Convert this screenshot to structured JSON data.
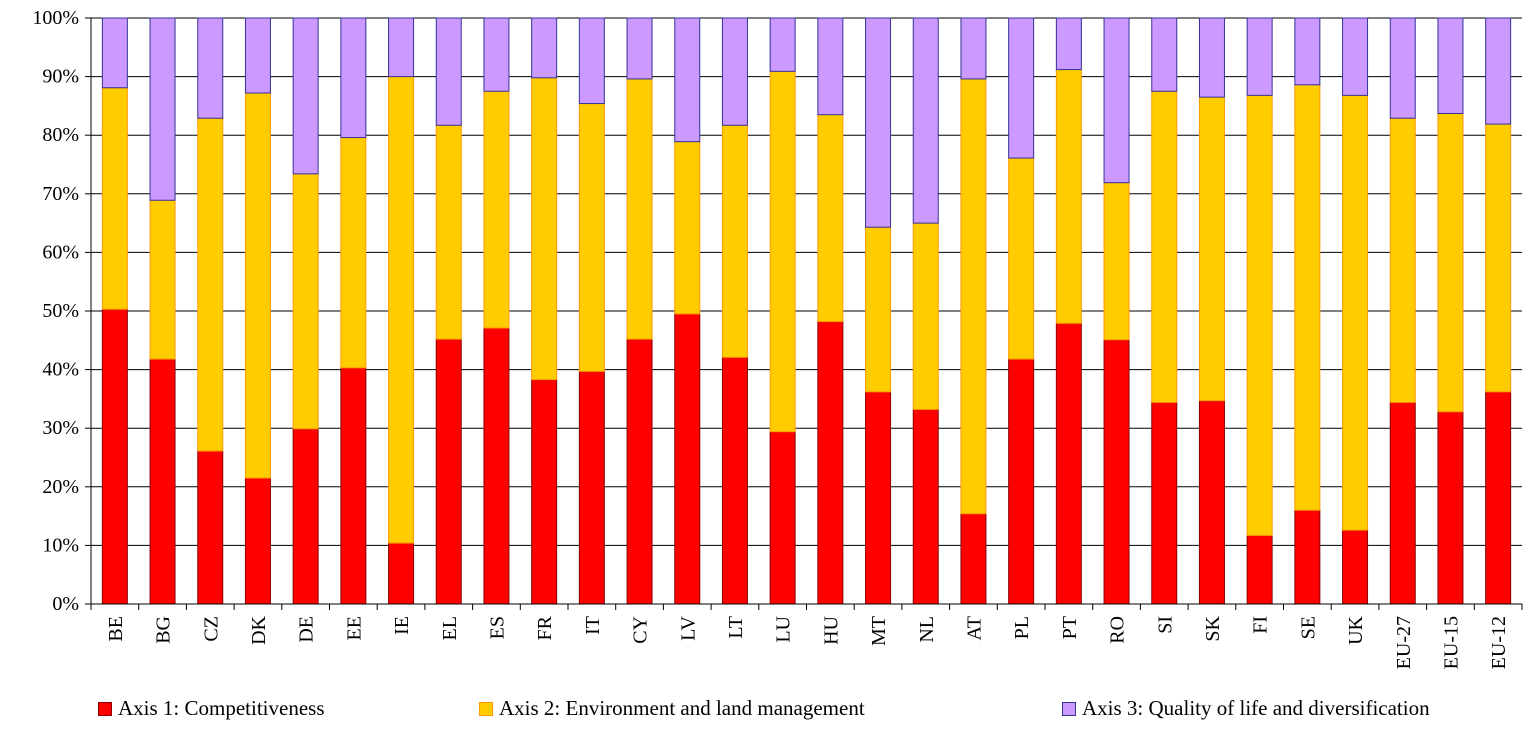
{
  "chart_data": {
    "type": "bar",
    "stacked": true,
    "percent_stacked": true,
    "title": "",
    "xlabel": "",
    "ylabel": "",
    "ylim": [
      0,
      100
    ],
    "y_ticks": [
      "0%",
      "10%",
      "20%",
      "30%",
      "40%",
      "50%",
      "60%",
      "70%",
      "80%",
      "90%",
      "100%"
    ],
    "grid": "horizontal",
    "legend_position": "bottom",
    "categories": [
      "BE",
      "BG",
      "CZ",
      "DK",
      "DE",
      "EE",
      "IE",
      "EL",
      "ES",
      "FR",
      "IT",
      "CY",
      "LV",
      "LT",
      "LU",
      "HU",
      "MT",
      "NL",
      "AT",
      "PL",
      "PT",
      "RO",
      "SI",
      "SK",
      "FI",
      "SE",
      "UK",
      "EU-27",
      "EU-15",
      "EU-12"
    ],
    "series": [
      {
        "name": "Axis 1: Competitiveness",
        "color": "#ff0000",
        "border": "#8b0000",
        "values": [
          50.3,
          41.8,
          26.1,
          21.5,
          29.9,
          40.3,
          10.4,
          45.2,
          47.1,
          38.3,
          39.7,
          45.2,
          49.5,
          42.1,
          29.4,
          48.2,
          36.2,
          33.2,
          15.4,
          41.8,
          47.9,
          45.1,
          34.4,
          34.7,
          11.7,
          16.0,
          12.6,
          34.4,
          32.8,
          36.2
        ]
      },
      {
        "name": "Axis 2: Environment and land management",
        "color": "#ffcc00",
        "border": "#ff9900",
        "values": [
          37.8,
          27.1,
          56.8,
          65.7,
          43.5,
          39.3,
          79.6,
          36.5,
          40.4,
          51.5,
          45.7,
          44.4,
          29.4,
          39.6,
          61.5,
          35.3,
          28.1,
          31.8,
          74.2,
          34.3,
          43.3,
          26.8,
          53.1,
          51.8,
          75.1,
          72.6,
          74.2,
          48.5,
          50.9,
          45.7
        ]
      },
      {
        "name": "Axis 3: Quality of life and diversification",
        "color": "#cc99ff",
        "border": "#333399",
        "values": [
          11.9,
          31.1,
          17.1,
          12.8,
          26.6,
          20.4,
          10.0,
          18.3,
          12.5,
          10.2,
          14.6,
          10.4,
          21.1,
          18.3,
          9.1,
          16.5,
          35.7,
          35.0,
          10.4,
          23.9,
          8.8,
          28.1,
          12.5,
          13.5,
          13.2,
          11.4,
          13.2,
          17.1,
          16.3,
          18.1
        ]
      }
    ]
  }
}
